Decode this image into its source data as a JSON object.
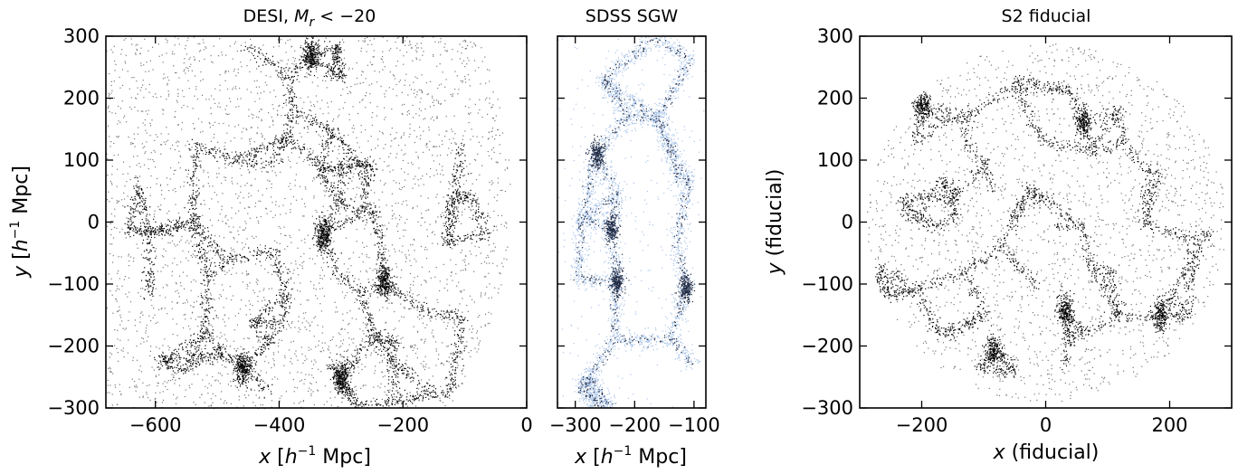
{
  "chart_data": [
    {
      "type": "scatter",
      "title": "DESI, M_r < −20",
      "title_main": "DESI, ",
      "title_var": "M",
      "title_sub": "r",
      "title_rest": " < −20",
      "xlabel": "x [h⁻¹ Mpc]",
      "ylabel": "y [h⁻¹ Mpc]",
      "xlim": [
        -680,
        0
      ],
      "ylim": [
        -300,
        300
      ],
      "xticks": [
        -600,
        -400,
        -200,
        0
      ],
      "xtick_labels": [
        "−600",
        "−400",
        "−200",
        "0"
      ],
      "yticks": [
        300,
        200,
        100,
        0,
        -100,
        -200,
        -300
      ],
      "ytick_labels": [
        "300",
        "200",
        "100",
        "0",
        "−100",
        "−200",
        "−300"
      ],
      "point_color": "#000000",
      "footprint": "wedge (right apex near x = −30, y = 30)",
      "clusters": [
        {
          "x": -230,
          "y": -95,
          "label": "dense cluster"
        },
        {
          "x": -350,
          "y": 270
        },
        {
          "x": -460,
          "y": -235
        },
        {
          "x": -300,
          "y": -250
        },
        {
          "x": -330,
          "y": -20
        }
      ]
    },
    {
      "type": "scatter",
      "title": "SDSS SGW",
      "xlabel": "x [h⁻¹ Mpc]",
      "xlim": [
        -330,
        -80
      ],
      "ylim": [
        -300,
        300
      ],
      "xticks": [
        -300,
        -200,
        -100
      ],
      "xtick_labels": [
        "−300",
        "−200",
        "−100"
      ],
      "point_color": "#1f2a44",
      "background_point_color": "#a9c4e8",
      "clusters": [
        {
          "x": -230,
          "y": -95
        },
        {
          "x": -115,
          "y": -105
        },
        {
          "x": -265,
          "y": 110
        },
        {
          "x": -240,
          "y": -10
        }
      ]
    },
    {
      "type": "scatter",
      "title": "S2 fiducial",
      "xlabel": "x (fiducial)",
      "ylabel": "y (fiducial)",
      "xlim": [
        -300,
        300
      ],
      "ylim": [
        -300,
        300
      ],
      "xticks": [
        -200,
        0,
        200
      ],
      "xtick_labels": [
        "−200",
        "0",
        "200"
      ],
      "yticks": [
        300,
        200,
        100,
        0,
        -100,
        -200,
        -300
      ],
      "ytick_labels": [
        "300",
        "200",
        "100",
        "0",
        "−100",
        "−200",
        "−300"
      ],
      "point_color": "#000000",
      "footprint": "circle (radius ≈ 290)",
      "clusters": [
        {
          "x": 30,
          "y": -140
        },
        {
          "x": 60,
          "y": 160
        },
        {
          "x": -85,
          "y": -205
        },
        {
          "x": 185,
          "y": -150
        },
        {
          "x": -200,
          "y": 190
        }
      ]
    }
  ]
}
